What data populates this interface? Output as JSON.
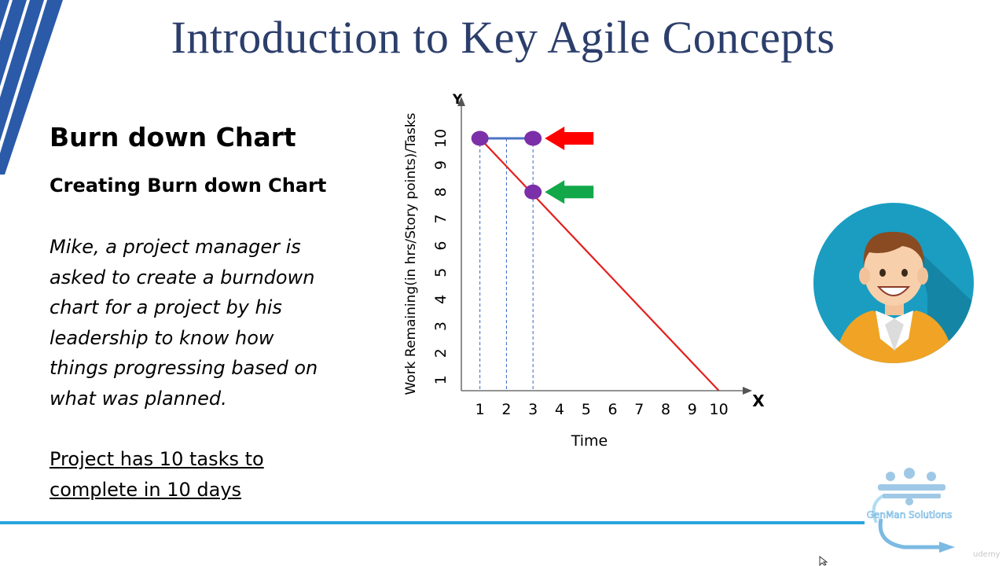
{
  "slide": {
    "title": "Introduction to Key Agile Concepts",
    "heading": "Burn down Chart",
    "subheading": "Creating Burn down Chart",
    "story_lines": [
      "Mike, a project manager is",
      "asked to create a burndown",
      "chart for a project by his",
      "leadership to know how",
      "things progressing based on",
      "what was planned."
    ],
    "note_lines": [
      "Project has 10 tasks to",
      "complete in 10 days"
    ]
  },
  "logo": {
    "text": "GenMan Solutions"
  },
  "watermark": "udemy",
  "colors": {
    "title": "#2c3e6b",
    "stripes": "#2b5aa8",
    "ideal_line": "#e41e1e",
    "actual_line": "#4a74c4",
    "points": "#7b2fa8",
    "red_arrow": "#ff0000",
    "green_arrow": "#12a84a",
    "bottom_line": "#2aa4de",
    "avatar_bg": "#1a9dc1"
  },
  "chart_data": {
    "type": "line",
    "x_axis_letter": "X",
    "y_axis_letter": "Y",
    "xlabel": "Time",
    "ylabel": "Work Remaining(in hrs/Story points)/Tasks",
    "x_ticks": [
      1,
      2,
      3,
      4,
      5,
      6,
      7,
      8,
      9,
      10
    ],
    "y_ticks": [
      1,
      2,
      3,
      4,
      5,
      6,
      7,
      8,
      9,
      10
    ],
    "xlim": [
      0.3,
      10.9
    ],
    "ylim": [
      0.6,
      11.2
    ],
    "series": [
      {
        "key": "ideal",
        "x": [
          1,
          10
        ],
        "y": [
          10,
          0.6
        ]
      },
      {
        "key": "actual",
        "x": [
          1,
          3
        ],
        "y": [
          10,
          10
        ]
      }
    ],
    "points": [
      {
        "x": 1,
        "y": 10
      },
      {
        "x": 3,
        "y": 10
      },
      {
        "x": 3,
        "y": 8
      }
    ],
    "guide_x": [
      1,
      2,
      3
    ],
    "arrows": [
      {
        "color": "red_arrow",
        "x": 3,
        "y": 10
      },
      {
        "color": "green_arrow",
        "x": 3,
        "y": 8
      }
    ]
  }
}
